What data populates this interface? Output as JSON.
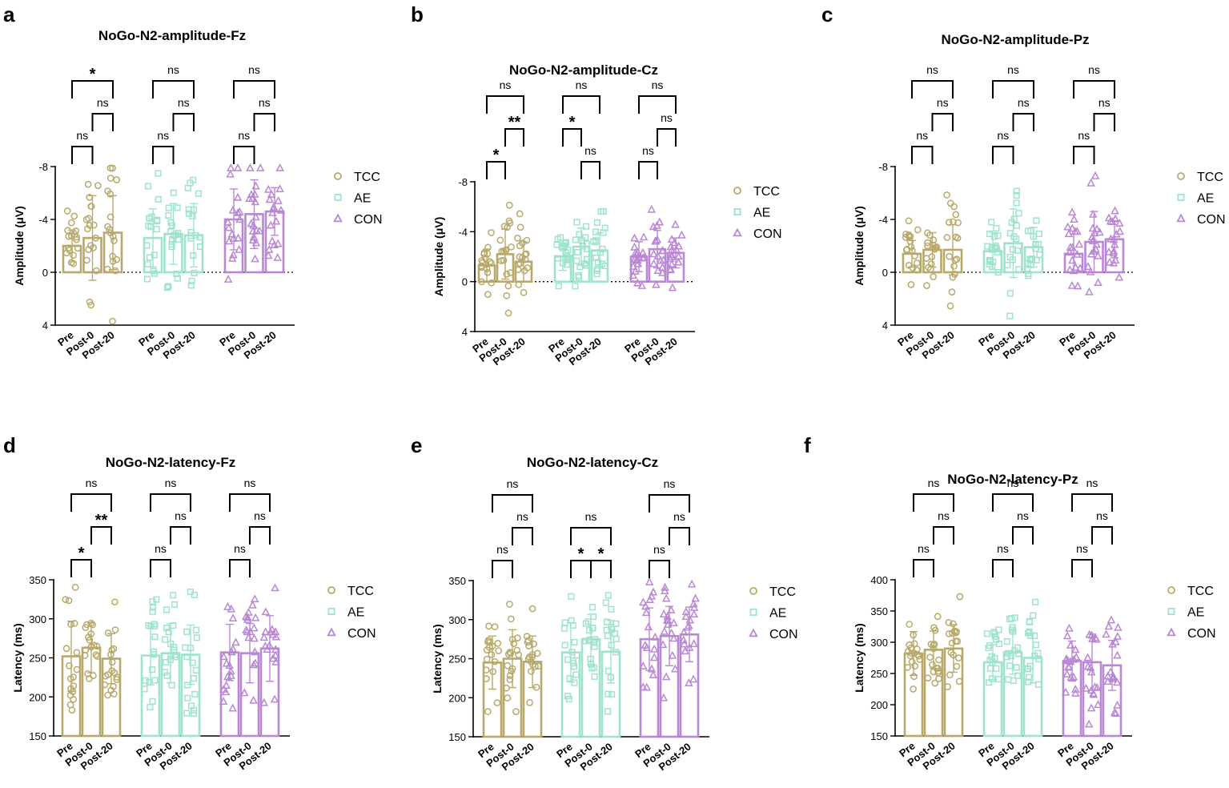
{
  "groups": [
    "TCC",
    "AE",
    "CON"
  ],
  "timepoints": [
    "Pre",
    "Post-0",
    "Post-20"
  ],
  "colors": {
    "TCC": "#b8a96b",
    "AE": "#9fe3cf",
    "CON": "#b987d3",
    "axis": "#000000"
  },
  "markers": {
    "TCC": "circle",
    "AE": "square",
    "CON": "triangle"
  },
  "chart_data": [
    {
      "panel": "a",
      "type": "bar",
      "title": "NoGo-N2-amplitude-Fz",
      "ylabel": "Amplitude (μV)",
      "ylim": [
        4,
        -8
      ],
      "yticks": [
        -8,
        -4,
        0,
        4
      ],
      "yticklabels": [
        "-8",
        "-4",
        "0",
        "4"
      ],
      "zero_line": true,
      "categories": [
        "Pre",
        "Post-0",
        "Post-20"
      ],
      "series": [
        {
          "name": "TCC",
          "values": [
            -2.0,
            -2.6,
            -3.0
          ],
          "sd": [
            1.2,
            3.2,
            2.8
          ]
        },
        {
          "name": "AE",
          "values": [
            -2.6,
            -2.9,
            -2.8
          ],
          "sd": [
            2.2,
            2.3,
            2.4
          ]
        },
        {
          "name": "CON",
          "values": [
            -4.0,
            -4.4,
            -4.6
          ],
          "sd": [
            2.3,
            2.6,
            1.8
          ]
        }
      ],
      "significance": [
        [
          {
            "label": "ns",
            "pair": [
              0,
              1
            ],
            "level": 1
          },
          {
            "label": "ns",
            "pair": [
              1,
              2
            ],
            "level": 2
          },
          {
            "label": "*",
            "pair": [
              0,
              2
            ],
            "level": 3
          }
        ],
        [
          {
            "label": "ns",
            "pair": [
              0,
              1
            ],
            "level": 1
          },
          {
            "label": "ns",
            "pair": [
              1,
              2
            ],
            "level": 2
          },
          {
            "label": "ns",
            "pair": [
              0,
              2
            ],
            "level": 3
          }
        ],
        [
          {
            "label": "ns",
            "pair": [
              0,
              1
            ],
            "level": 1
          },
          {
            "label": "ns",
            "pair": [
              1,
              2
            ],
            "level": 2
          },
          {
            "label": "ns",
            "pair": [
              0,
              2
            ],
            "level": 3
          }
        ]
      ],
      "legend": [
        "TCC",
        "AE",
        "CON"
      ]
    },
    {
      "panel": "b",
      "type": "bar",
      "title": "NoGo-N2-amplitude-Cz",
      "ylabel": "Amplitude (μV)",
      "ylim": [
        4,
        -8
      ],
      "yticks": [
        -8,
        -4,
        0,
        4
      ],
      "yticklabels": [
        "-8",
        "-4",
        "0",
        "4"
      ],
      "zero_line": true,
      "categories": [
        "Pre",
        "Post-0",
        "Post-20"
      ],
      "series": [
        {
          "name": "TCC",
          "values": [
            -1.3,
            -2.2,
            -1.6
          ],
          "sd": [
            1.3,
            2.0,
            1.6
          ]
        },
        {
          "name": "AE",
          "values": [
            -2.0,
            -2.8,
            -2.5
          ],
          "sd": [
            1.1,
            1.5,
            1.4
          ]
        },
        {
          "name": "CON",
          "values": [
            -2.0,
            -2.6,
            -2.3
          ],
          "sd": [
            1.2,
            1.5,
            1.2
          ]
        }
      ],
      "significance": [
        [
          {
            "label": "*",
            "pair": [
              0,
              1
            ],
            "level": 1
          },
          {
            "label": "**",
            "pair": [
              1,
              2
            ],
            "level": 2
          },
          {
            "label": "ns",
            "pair": [
              0,
              2
            ],
            "level": 3
          }
        ],
        [
          {
            "label": "ns",
            "pair": [
              1,
              2
            ],
            "level": 1
          },
          {
            "label": "*",
            "pair": [
              0,
              1
            ],
            "level": 2
          },
          {
            "label": "ns",
            "pair": [
              0,
              2
            ],
            "level": 3
          }
        ],
        [
          {
            "label": "ns",
            "pair": [
              0,
              1
            ],
            "level": 1
          },
          {
            "label": "ns",
            "pair": [
              1,
              2
            ],
            "level": 2
          },
          {
            "label": "ns",
            "pair": [
              0,
              2
            ],
            "level": 3
          }
        ]
      ],
      "legend": [
        "TCC",
        "AE",
        "CON"
      ]
    },
    {
      "panel": "c",
      "type": "bar",
      "title": "NoGo-N2-amplitude-Pz",
      "ylabel": "Amplitude (μV)",
      "ylim": [
        4,
        -8
      ],
      "yticks": [
        -8,
        -4,
        0,
        4
      ],
      "yticklabels": [
        "-8",
        "-4",
        "0",
        "4"
      ],
      "zero_line": true,
      "categories": [
        "Pre",
        "Post-0",
        "Post-20"
      ],
      "series": [
        {
          "name": "TCC",
          "values": [
            -1.4,
            -1.7,
            -1.7
          ],
          "sd": [
            1.0,
            1.3,
            1.9
          ]
        },
        {
          "name": "AE",
          "values": [
            -1.6,
            -2.2,
            -1.9
          ],
          "sd": [
            1.4,
            2.6,
            1.5
          ]
        },
        {
          "name": "CON",
          "values": [
            -1.4,
            -2.3,
            -2.5
          ],
          "sd": [
            1.5,
            2.3,
            1.4
          ]
        }
      ],
      "significance": [
        [
          {
            "label": "ns",
            "pair": [
              0,
              1
            ],
            "level": 1
          },
          {
            "label": "ns",
            "pair": [
              1,
              2
            ],
            "level": 2
          },
          {
            "label": "ns",
            "pair": [
              0,
              2
            ],
            "level": 3
          }
        ],
        [
          {
            "label": "ns",
            "pair": [
              0,
              1
            ],
            "level": 1
          },
          {
            "label": "ns",
            "pair": [
              1,
              2
            ],
            "level": 2
          },
          {
            "label": "ns",
            "pair": [
              0,
              2
            ],
            "level": 3
          }
        ],
        [
          {
            "label": "ns",
            "pair": [
              0,
              1
            ],
            "level": 1
          },
          {
            "label": "ns",
            "pair": [
              1,
              2
            ],
            "level": 2
          },
          {
            "label": "ns",
            "pair": [
              0,
              2
            ],
            "level": 3
          }
        ]
      ],
      "legend": [
        "TCC",
        "AE",
        "CON"
      ]
    },
    {
      "panel": "d",
      "type": "bar",
      "title": "NoGo-N2-latency-Fz",
      "ylabel": "Latency (ms)",
      "ylim": [
        150,
        350
      ],
      "yticks": [
        150,
        200,
        250,
        300,
        350
      ],
      "yticklabels": [
        "150",
        "200",
        "250",
        "300",
        "350"
      ],
      "zero_line": false,
      "categories": [
        "Pre",
        "Post-0",
        "Post-20"
      ],
      "series": [
        {
          "name": "TCC",
          "values": [
            252,
            263,
            249
          ],
          "sd": [
            45,
            32,
            32
          ]
        },
        {
          "name": "AE",
          "values": [
            253,
            256,
            254
          ],
          "sd": [
            38,
            38,
            38
          ]
        },
        {
          "name": "CON",
          "values": [
            257,
            256,
            262
          ],
          "sd": [
            36,
            38,
            42
          ]
        }
      ],
      "significance": [
        [
          {
            "label": "*",
            "pair": [
              0,
              1
            ],
            "level": 1
          },
          {
            "label": "**",
            "pair": [
              1,
              2
            ],
            "level": 2
          },
          {
            "label": "ns",
            "pair": [
              0,
              2
            ],
            "level": 3
          }
        ],
        [
          {
            "label": "ns",
            "pair": [
              0,
              1
            ],
            "level": 1
          },
          {
            "label": "ns",
            "pair": [
              1,
              2
            ],
            "level": 2
          },
          {
            "label": "ns",
            "pair": [
              0,
              2
            ],
            "level": 3
          }
        ],
        [
          {
            "label": "ns",
            "pair": [
              0,
              1
            ],
            "level": 1
          },
          {
            "label": "ns",
            "pair": [
              1,
              2
            ],
            "level": 2
          },
          {
            "label": "ns",
            "pair": [
              0,
              2
            ],
            "level": 3
          }
        ]
      ],
      "legend": [
        "TCC",
        "AE",
        "CON"
      ]
    },
    {
      "panel": "e",
      "type": "bar",
      "title": "NoGo-N2-latency-Cz",
      "ylabel": "Latency (ms)",
      "ylim": [
        150,
        350
      ],
      "yticks": [
        150,
        200,
        250,
        300,
        350
      ],
      "yticklabels": [
        "150",
        "200",
        "250",
        "300",
        "350"
      ],
      "zero_line": false,
      "categories": [
        "Pre",
        "Post-0",
        "Post-20"
      ],
      "series": [
        {
          "name": "TCC",
          "values": [
            245,
            250,
            246
          ],
          "sd": [
            34,
            37,
            33
          ]
        },
        {
          "name": "AE",
          "values": [
            258,
            275,
            259
          ],
          "sd": [
            38,
            32,
            40
          ]
        },
        {
          "name": "CON",
          "values": [
            275,
            279,
            281
          ],
          "sd": [
            40,
            38,
            35
          ]
        }
      ],
      "significance": [
        [
          {
            "label": "ns",
            "pair": [
              0,
              1
            ],
            "level": 1
          },
          {
            "label": "ns",
            "pair": [
              1,
              2
            ],
            "level": 2
          },
          {
            "label": "ns",
            "pair": [
              0,
              2
            ],
            "level": 3
          }
        ],
        [
          {
            "label": "*",
            "pair": [
              0,
              1
            ],
            "level": 1
          },
          {
            "label": "*",
            "pair": [
              1,
              2
            ],
            "level": 1
          },
          {
            "label": "ns",
            "pair": [
              0,
              2
            ],
            "level": 2
          }
        ],
        [
          {
            "label": "ns",
            "pair": [
              0,
              1
            ],
            "level": 1
          },
          {
            "label": "ns",
            "pair": [
              1,
              2
            ],
            "level": 2
          },
          {
            "label": "ns",
            "pair": [
              0,
              2
            ],
            "level": 3
          }
        ]
      ],
      "legend": [
        "TCC",
        "AE",
        "CON"
      ]
    },
    {
      "panel": "f",
      "type": "bar",
      "title": "NoGo-N2-latency-Pz",
      "ylabel": "Latency (ms)",
      "ylim": [
        150,
        400
      ],
      "yticks": [
        150,
        200,
        250,
        300,
        350,
        400
      ],
      "yticklabels": [
        "150",
        "200",
        "250",
        "300",
        "350",
        "400"
      ],
      "zero_line": false,
      "categories": [
        "Pre",
        "Post-0",
        "Post-20"
      ],
      "series": [
        {
          "name": "TCC",
          "values": [
            282,
            288,
            290
          ],
          "sd": [
            35,
            30,
            38
          ]
        },
        {
          "name": "AE",
          "values": [
            268,
            284,
            275
          ],
          "sd": [
            28,
            35,
            40
          ]
        },
        {
          "name": "CON",
          "values": [
            270,
            268,
            263
          ],
          "sd": [
            32,
            45,
            40
          ]
        }
      ],
      "significance": [
        [
          {
            "label": "ns",
            "pair": [
              0,
              1
            ],
            "level": 1
          },
          {
            "label": "ns",
            "pair": [
              1,
              2
            ],
            "level": 2
          },
          {
            "label": "ns",
            "pair": [
              0,
              2
            ],
            "level": 3
          }
        ],
        [
          {
            "label": "ns",
            "pair": [
              0,
              1
            ],
            "level": 1
          },
          {
            "label": "ns",
            "pair": [
              1,
              2
            ],
            "level": 2
          },
          {
            "label": "ns",
            "pair": [
              0,
              2
            ],
            "level": 3
          }
        ],
        [
          {
            "label": "ns",
            "pair": [
              0,
              1
            ],
            "level": 1
          },
          {
            "label": "ns",
            "pair": [
              1,
              2
            ],
            "level": 2
          },
          {
            "label": "ns",
            "pair": [
              0,
              2
            ],
            "level": 3
          }
        ]
      ],
      "legend": [
        "TCC",
        "AE",
        "CON"
      ]
    }
  ]
}
